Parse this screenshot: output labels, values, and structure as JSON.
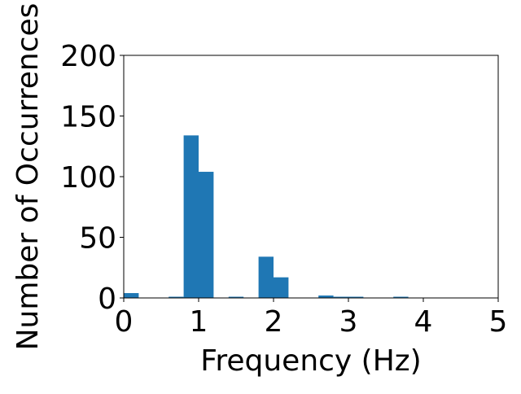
{
  "chart_data": {
    "type": "bar",
    "title": "",
    "xlabel": "Frequency (Hz)",
    "ylabel": "Number of Occurrences",
    "xlim": [
      0,
      5
    ],
    "ylim": [
      0,
      200
    ],
    "x_ticks": [
      0,
      1,
      2,
      3,
      4,
      5
    ],
    "y_ticks": [
      0,
      50,
      100,
      150,
      200
    ],
    "bin_width": 0.2,
    "bins": [
      {
        "x0": 0.0,
        "x1": 0.2,
        "value": 4
      },
      {
        "x0": 0.6,
        "x1": 0.8,
        "value": 1
      },
      {
        "x0": 0.8,
        "x1": 1.0,
        "value": 134
      },
      {
        "x0": 1.0,
        "x1": 1.2,
        "value": 104
      },
      {
        "x0": 1.4,
        "x1": 1.6,
        "value": 1
      },
      {
        "x0": 1.8,
        "x1": 2.0,
        "value": 34
      },
      {
        "x0": 2.0,
        "x1": 2.2,
        "value": 17
      },
      {
        "x0": 2.6,
        "x1": 2.8,
        "value": 2
      },
      {
        "x0": 2.8,
        "x1": 3.0,
        "value": 1
      },
      {
        "x0": 3.0,
        "x1": 3.2,
        "value": 1
      },
      {
        "x0": 3.6,
        "x1": 3.8,
        "value": 1
      }
    ],
    "grid": false,
    "legend": "none",
    "bar_color": "#1f77b4"
  }
}
